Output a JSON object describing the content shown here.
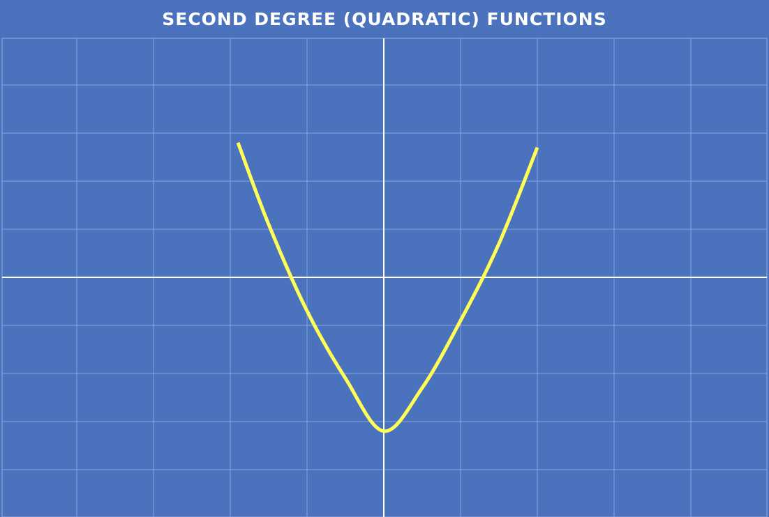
{
  "chart_data": {
    "type": "line",
    "title": "SECOND DEGREE (QUADRATIC) FUNCTIONS",
    "xlabel": "",
    "ylabel": "",
    "grid": true,
    "xlim": [
      -5,
      5
    ],
    "ylim": [
      -5,
      5
    ],
    "series": [
      {
        "color": "#ffff57",
        "x": [
          -1.9,
          -1.5,
          -1.0,
          -0.5,
          0.0,
          0.5,
          1.0,
          1.5,
          2.0
        ],
        "y": [
          2.8,
          1.1,
          -0.7,
          -2.1,
          -3.2,
          -2.3,
          -0.9,
          0.7,
          2.7
        ]
      }
    ],
    "colors": {
      "background": "#4a72bd",
      "grid": "#8aa5da",
      "axes": "#ffffff",
      "curve": "#ffff57"
    }
  }
}
